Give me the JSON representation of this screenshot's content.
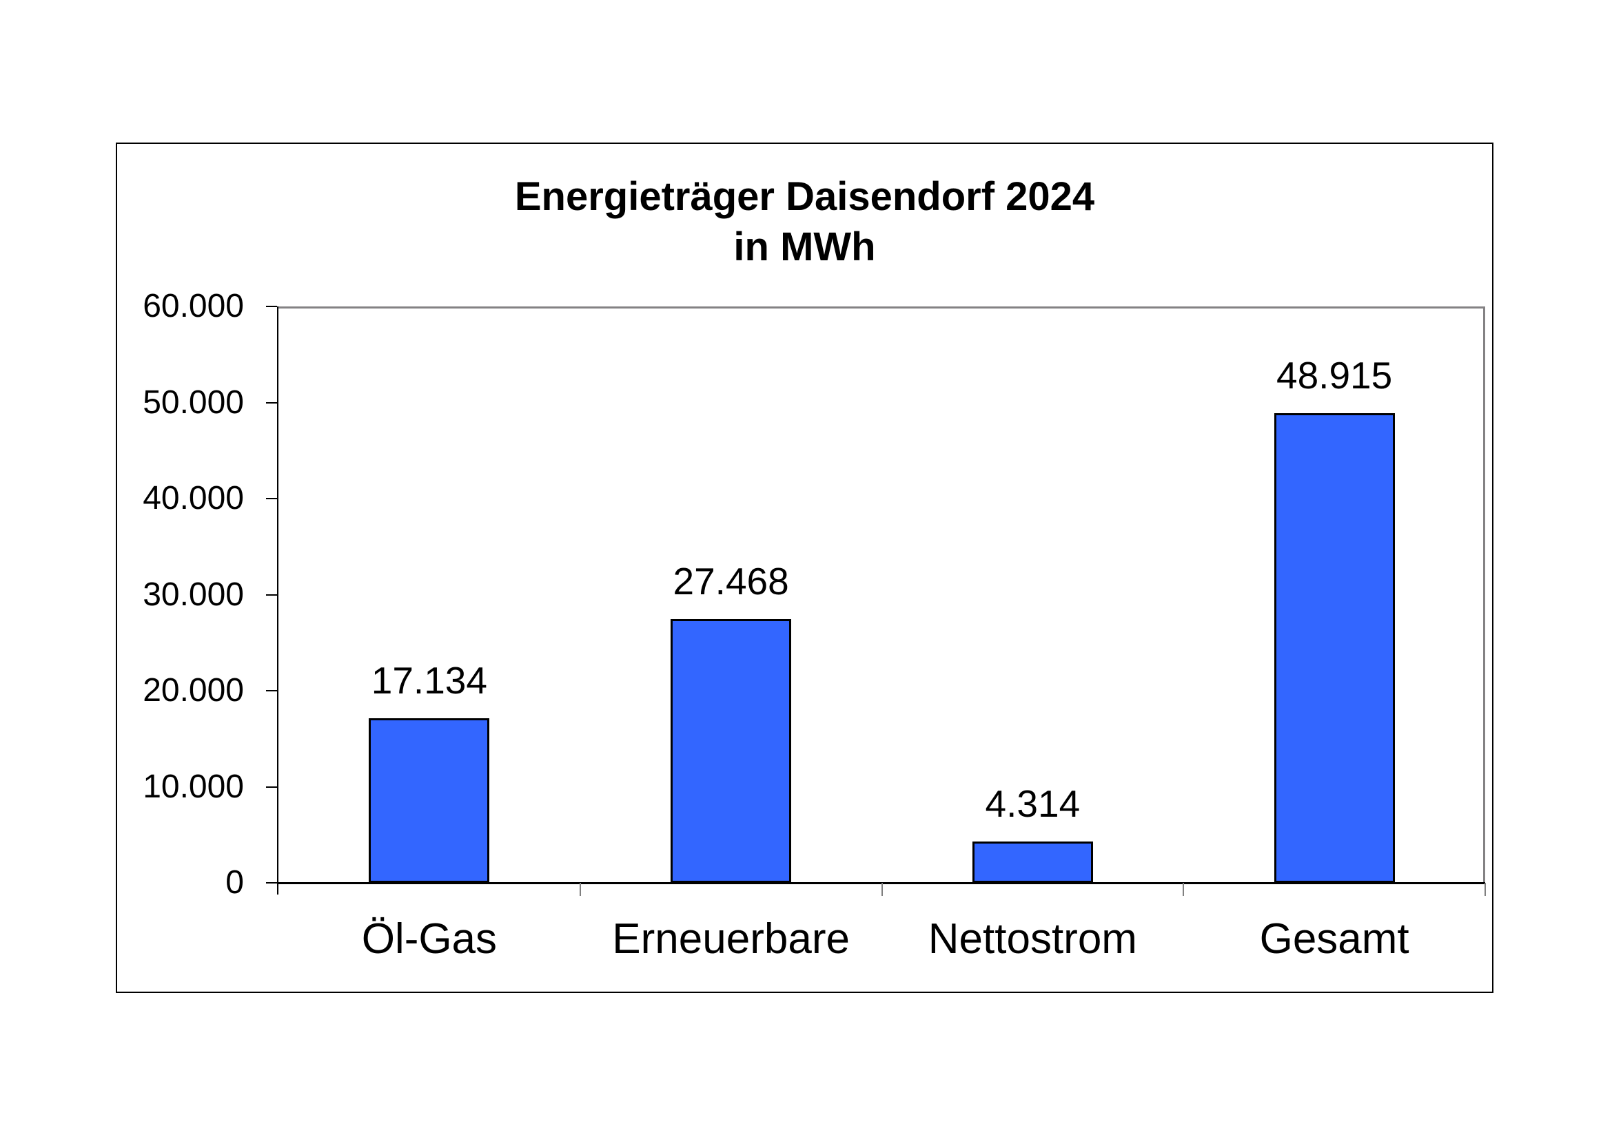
{
  "title": {
    "line1": "Energieträger Daisendorf 2024",
    "line2": "in MWh"
  },
  "chart_data": {
    "type": "bar",
    "title": "Energieträger Daisendorf 2024 in MWh",
    "categories": [
      "Öl-Gas",
      "Erneuerbare",
      "Nettostrom",
      "Gesamt"
    ],
    "values": [
      17134,
      27468,
      4314,
      48915
    ],
    "data_labels": [
      "17.134",
      "27.468",
      "4.314",
      "48.915"
    ],
    "xlabel": "",
    "ylabel": "",
    "ylim": [
      0,
      60000
    ],
    "ytick_interval": 10000,
    "ytick_labels": [
      "0",
      "10.000",
      "20.000",
      "30.000",
      "40.000",
      "50.000",
      "60.000"
    ],
    "grid": false,
    "legend": "none",
    "bar_color": "#3366FF",
    "bar_border_color": "#000000",
    "axis_color": "#000000",
    "plot_border_color": "#848284",
    "x_tick_color": "#808080",
    "text_color": "#000000"
  }
}
